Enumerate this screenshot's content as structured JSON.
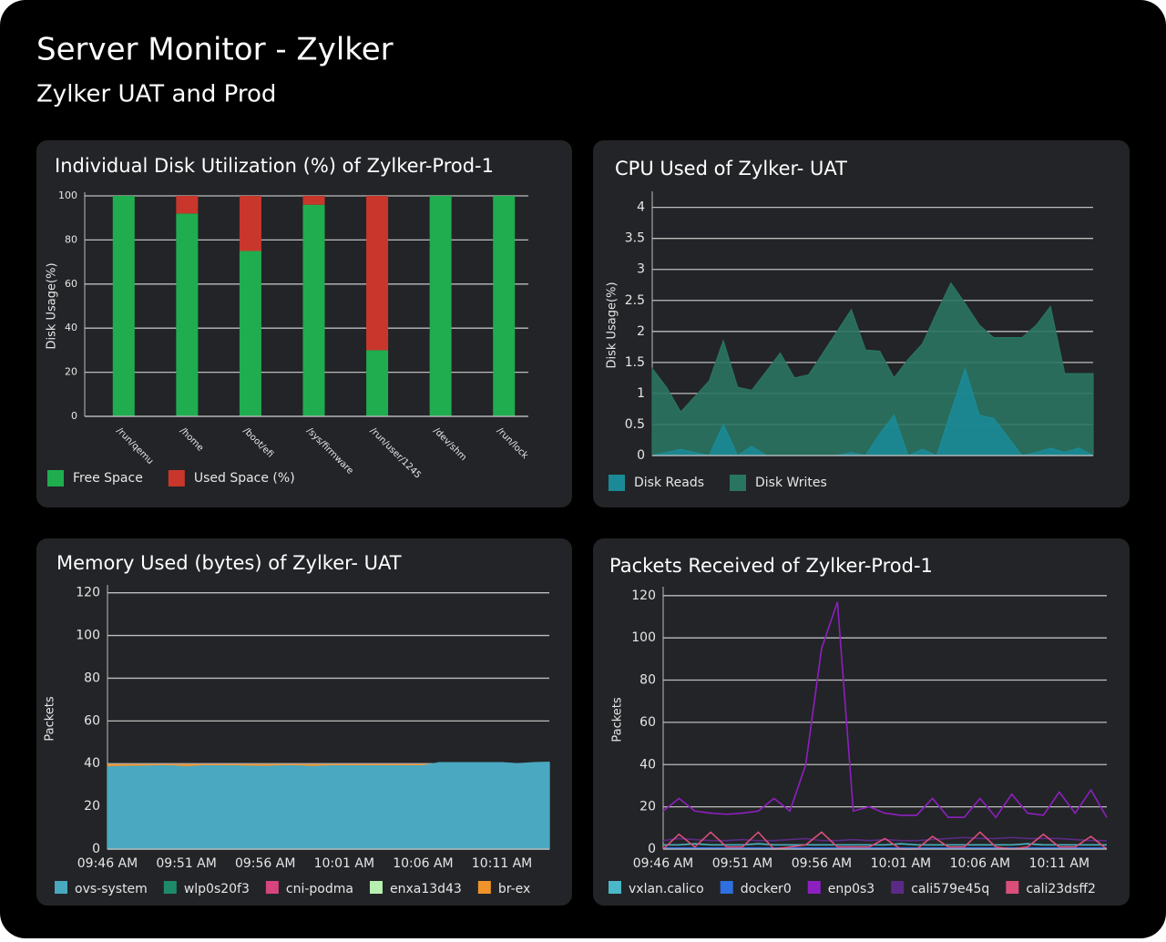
{
  "header": {
    "title": "Server Monitor - Zylker",
    "subtitle": "Zylker UAT and Prod"
  },
  "chart_data": [
    {
      "type": "bar",
      "stacked": true,
      "title": "Individual Disk Utilization (%) of Zylker-Prod-1",
      "y_label": "Disk Usage(%)",
      "categories": [
        "/run/qemu",
        "/home",
        "/boot/efi",
        "/sys/firmware",
        "/run/user/1245",
        "/dev/shm",
        "/run/lock"
      ],
      "series": [
        {
          "name": "Free Space",
          "color": "#1fad4f",
          "values": [
            100,
            92,
            75,
            96,
            30,
            100,
            100
          ]
        },
        {
          "name": "Used Space (%)",
          "color": "#c9372c",
          "values": [
            0,
            8,
            25,
            4,
            70,
            0,
            0
          ]
        }
      ],
      "ylim": [
        0,
        100
      ],
      "yticks": [
        0,
        20,
        40,
        60,
        80,
        100
      ],
      "grid": true
    },
    {
      "type": "area",
      "title": "CPU Used of Zylker- UAT",
      "y_label": "Disk Usage(%)",
      "series": [
        {
          "name": "Disk Reads",
          "color": "#1b8a96",
          "values": [
            0,
            0.05,
            0.1,
            0.05,
            0,
            0.5,
            0,
            0.15,
            0,
            0,
            0,
            0,
            0,
            0,
            0.05,
            0,
            0.35,
            0.65,
            0,
            0.1,
            0,
            0.7,
            1.4,
            0.65,
            0.6,
            0.3,
            0,
            0.05,
            0.12,
            0.05,
            0.12,
            0
          ]
        },
        {
          "name": "Disk Writes",
          "color": "#2a7462",
          "values": [
            1.4,
            1.1,
            0.7,
            0.95,
            1.2,
            1.85,
            1.1,
            1.05,
            1.35,
            1.65,
            1.25,
            1.3,
            1.65,
            2.0,
            2.35,
            1.7,
            1.68,
            1.25,
            1.55,
            1.8,
            2.3,
            2.78,
            2.45,
            2.1,
            1.9,
            1.9,
            1.9,
            2.1,
            2.4,
            1.32,
            1.32,
            1.32
          ]
        }
      ],
      "ylim": [
        0,
        4.2
      ],
      "yticks": [
        0,
        0.5,
        1,
        1.5,
        2,
        2.5,
        3,
        3.5,
        4
      ],
      "grid": true
    },
    {
      "type": "area",
      "title": "Memory Used (bytes) of Zylker- UAT",
      "y_label": "Packets",
      "categories": [
        "09:46 AM",
        null,
        null,
        null,
        null,
        "09:51 AM",
        null,
        null,
        null,
        null,
        "09:56 AM",
        null,
        null,
        null,
        null,
        "10:01 AM",
        null,
        null,
        null,
        null,
        "10:06 AM",
        null,
        null,
        null,
        null,
        "10:11 AM",
        null,
        null,
        null
      ],
      "series": [
        {
          "name": "ovs-system",
          "color": "#4aa8c0",
          "values": [
            38.5,
            38.7,
            38.8,
            39,
            39,
            38.5,
            39,
            39,
            39,
            38.8,
            38.7,
            39,
            39,
            38.6,
            39,
            39,
            39,
            39,
            39,
            39,
            39,
            40.5,
            40.5,
            40.5,
            40.5,
            40.5,
            40,
            40.5,
            40.7
          ]
        },
        {
          "name": "wlp0s20f3",
          "color": "#1f8a6a",
          "values": [
            0,
            0,
            0,
            0,
            0,
            0,
            0,
            0,
            0,
            0,
            0,
            0,
            0,
            0,
            0,
            0,
            0,
            0,
            0,
            0,
            0,
            0,
            0,
            0,
            0,
            0,
            0,
            0,
            0
          ]
        },
        {
          "name": "cni-podma",
          "color": "#d6457d",
          "values": [
            0,
            0,
            0,
            0,
            0,
            0,
            0,
            0,
            0,
            0,
            0,
            0,
            0,
            0,
            0,
            0,
            0,
            0,
            0,
            0,
            0,
            0,
            0,
            0,
            0,
            0,
            0,
            0,
            0
          ]
        },
        {
          "name": "enxa13d43",
          "color": "#b7f0b0",
          "values": [
            0,
            0,
            0,
            0,
            0,
            0,
            0,
            0,
            0,
            0,
            0,
            0,
            0,
            0,
            0,
            0,
            0,
            0,
            0,
            0,
            0,
            0,
            0,
            0,
            0,
            0,
            0,
            0,
            0
          ]
        },
        {
          "name": "br-ex",
          "color": "#f0932b",
          "values": [
            39.5,
            39.5,
            39.5,
            39.5,
            39.5,
            39.5,
            39.5,
            39.5,
            39.5,
            39.5,
            39.5,
            39.5,
            39.5,
            39.5,
            39.5,
            39.5,
            39.5,
            39.5,
            39.5,
            39.5,
            39.5,
            39.5,
            39.5,
            39.5,
            39.5,
            39.5,
            39.5,
            39.5,
            39.5
          ]
        }
      ],
      "ylim": [
        0,
        122
      ],
      "yticks": [
        0,
        20,
        40,
        60,
        80,
        100,
        120
      ],
      "grid": true
    },
    {
      "type": "line",
      "title": "Packets Received of Zylker-Prod-1",
      "y_label": "Packets",
      "categories": [
        "09:46 AM",
        null,
        null,
        null,
        null,
        "09:51 AM",
        null,
        null,
        null,
        null,
        "09:56 AM",
        null,
        null,
        null,
        null,
        "10:01 AM",
        null,
        null,
        null,
        null,
        "10:06 AM",
        null,
        null,
        null,
        null,
        "10:11 AM",
        null,
        null,
        null
      ],
      "series": [
        {
          "name": "vxlan.calico",
          "color": "#4ab8c8",
          "values": [
            2,
            2,
            2.5,
            2,
            2,
            2,
            2.5,
            2,
            2,
            2,
            2,
            2,
            2,
            2,
            2,
            2.5,
            2,
            2,
            2,
            2,
            2,
            2,
            2,
            2.5,
            2,
            2,
            2,
            2,
            2
          ]
        },
        {
          "name": "docker0",
          "color": "#2f6fe0",
          "values": [
            0.5,
            0.5,
            0.5,
            0.5,
            0.5,
            0.5,
            0.5,
            0.5,
            0.5,
            0.5,
            0.5,
            0.5,
            0.5,
            0.5,
            0.5,
            0.5,
            0.5,
            0.5,
            0.5,
            0.5,
            0.5,
            0.5,
            0.5,
            0.5,
            0.5,
            0.5,
            0.5,
            0.5,
            0.5
          ]
        },
        {
          "name": "enp0s3",
          "color": "#8e1fc0",
          "values": [
            18,
            24,
            18,
            17,
            16.5,
            17,
            18,
            24,
            18,
            40,
            95,
            117,
            18,
            20,
            17,
            16,
            16,
            24,
            15,
            15,
            24,
            15,
            26,
            17,
            16,
            27,
            17,
            28,
            15
          ]
        },
        {
          "name": "cali579e45q",
          "color": "#5b2a86",
          "values": [
            4,
            5,
            4.5,
            4,
            4,
            4.5,
            4,
            4,
            4.5,
            5,
            4,
            4,
            4.5,
            4,
            4.5,
            4,
            4,
            4.5,
            5,
            5.5,
            5,
            5,
            5.5,
            5,
            5,
            5,
            4.5,
            4,
            4
          ]
        },
        {
          "name": "cali23dsff2",
          "color": "#d94f7a",
          "values": [
            0,
            7,
            1,
            8,
            1,
            1,
            8,
            0,
            1,
            2,
            8,
            1,
            1,
            1,
            5,
            0,
            0,
            6,
            1,
            1,
            8,
            1,
            0,
            1,
            7,
            1,
            1,
            6,
            0
          ]
        }
      ],
      "ylim": [
        0,
        122.5
      ],
      "yticks": [
        0,
        20,
        40,
        60,
        80,
        100,
        120
      ],
      "grid": true
    }
  ]
}
